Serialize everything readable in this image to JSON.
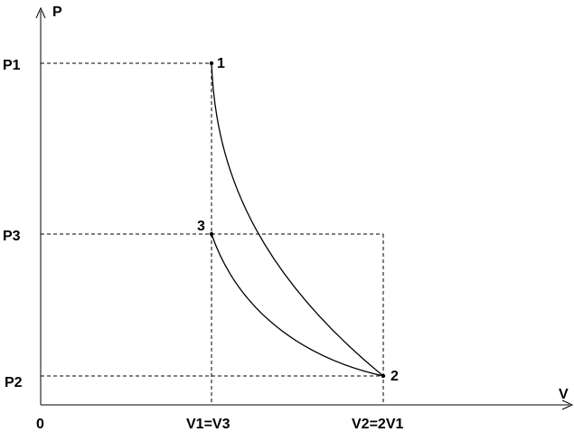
{
  "axes": {
    "y_label": "P",
    "x_label": "V",
    "origin_label": "0"
  },
  "pressure_labels": {
    "p1": "P1",
    "p3": "P3",
    "p2": "P2"
  },
  "volume_labels": {
    "v1": "V1=V3",
    "v2": "V2=2V1"
  },
  "states": [
    {
      "id": "1",
      "label": "1"
    },
    {
      "id": "2",
      "label": "2"
    },
    {
      "id": "3",
      "label": "3"
    }
  ],
  "colors": {
    "ink": "#000000",
    "background": "#ffffff"
  }
}
